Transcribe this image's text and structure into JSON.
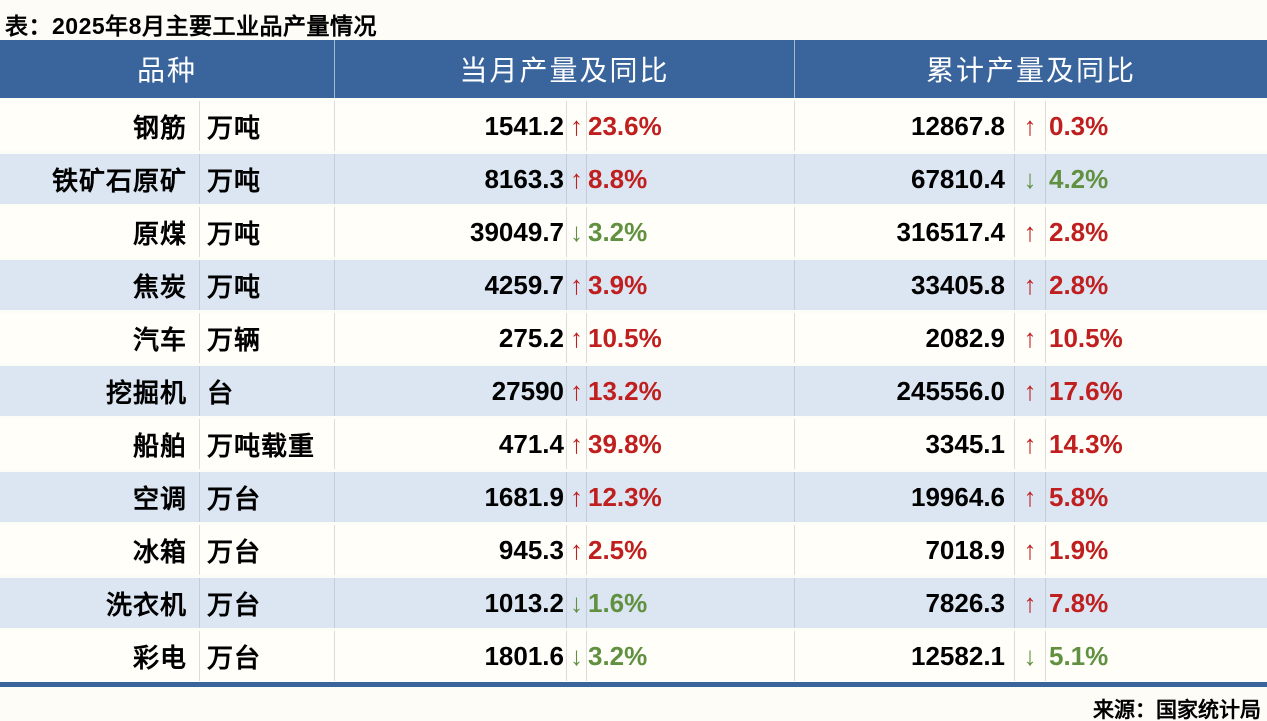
{
  "chart_data": {
    "type": "table",
    "title": "表：2025年8月主要工业品产量情况",
    "source": "来源：国家统计局",
    "columns": [
      "品种",
      "当月产量及同比",
      "累计产量及同比"
    ],
    "rows": [
      {
        "name": "钢筋",
        "unit": "万吨",
        "month_value": "1541.2",
        "month_dir": "up",
        "month_pct": "23.6%",
        "cum_value": "12867.8",
        "cum_dir": "up",
        "cum_pct": "0.3%"
      },
      {
        "name": "铁矿石原矿",
        "unit": "万吨",
        "month_value": "8163.3",
        "month_dir": "up",
        "month_pct": "8.8%",
        "cum_value": "67810.4",
        "cum_dir": "down",
        "cum_pct": "4.2%"
      },
      {
        "name": "原煤",
        "unit": "万吨",
        "month_value": "39049.7",
        "month_dir": "down",
        "month_pct": "3.2%",
        "cum_value": "316517.4",
        "cum_dir": "up",
        "cum_pct": "2.8%"
      },
      {
        "name": "焦炭",
        "unit": "万吨",
        "month_value": "4259.7",
        "month_dir": "up",
        "month_pct": "3.9%",
        "cum_value": "33405.8",
        "cum_dir": "up",
        "cum_pct": "2.8%"
      },
      {
        "name": "汽车",
        "unit": "万辆",
        "month_value": "275.2",
        "month_dir": "up",
        "month_pct": "10.5%",
        "cum_value": "2082.9",
        "cum_dir": "up",
        "cum_pct": "10.5%"
      },
      {
        "name": "挖掘机",
        "unit": "台",
        "month_value": "27590",
        "month_dir": "up",
        "month_pct": "13.2%",
        "cum_value": "245556.0",
        "cum_dir": "up",
        "cum_pct": "17.6%"
      },
      {
        "name": "船舶",
        "unit": "万吨载重",
        "month_value": "471.4",
        "month_dir": "up",
        "month_pct": "39.8%",
        "cum_value": "3345.1",
        "cum_dir": "up",
        "cum_pct": "14.3%"
      },
      {
        "name": "空调",
        "unit": "万台",
        "month_value": "1681.9",
        "month_dir": "up",
        "month_pct": "12.3%",
        "cum_value": "19964.6",
        "cum_dir": "up",
        "cum_pct": "5.8%"
      },
      {
        "name": "冰箱",
        "unit": "万台",
        "month_value": "945.3",
        "month_dir": "up",
        "month_pct": "2.5%",
        "cum_value": "7018.9",
        "cum_dir": "up",
        "cum_pct": "1.9%"
      },
      {
        "name": "洗衣机",
        "unit": "万台",
        "month_value": "1013.2",
        "month_dir": "down",
        "month_pct": "1.6%",
        "cum_value": "7826.3",
        "cum_dir": "up",
        "cum_pct": "7.8%"
      },
      {
        "name": "彩电",
        "unit": "万台",
        "month_value": "1801.6",
        "month_dir": "down",
        "month_pct": "3.2%",
        "cum_value": "12582.1",
        "cum_dir": "down",
        "cum_pct": "5.1%"
      }
    ]
  },
  "icons": {
    "up_arrow": "↑",
    "down_arrow": "↓"
  },
  "colors": {
    "up_red": "#bf1f1f",
    "down_green": "#619140",
    "header_bg": "#3a659c",
    "row_alt_bg": "#dce6f2"
  }
}
